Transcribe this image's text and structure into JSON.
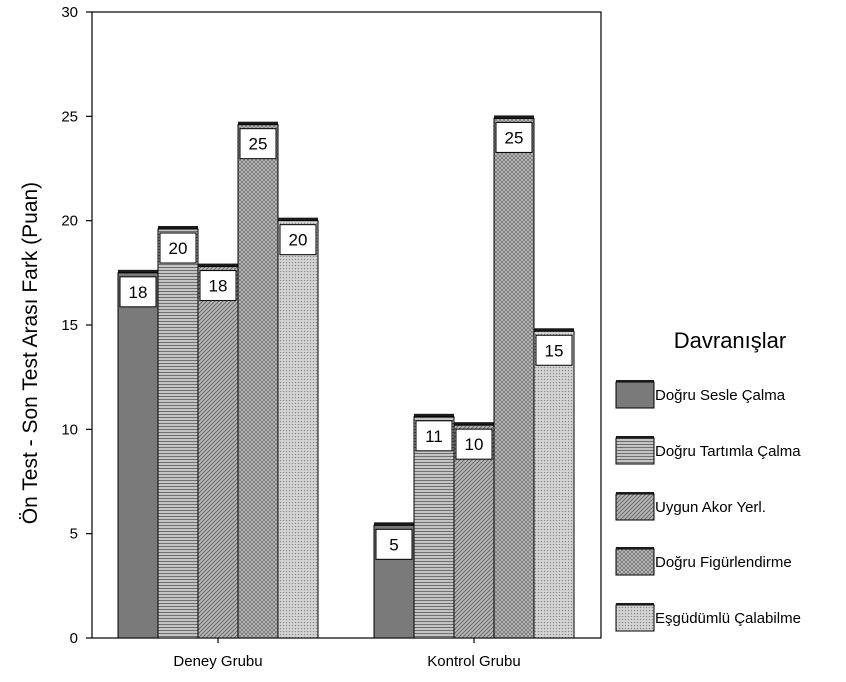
{
  "chart_data": {
    "type": "bar",
    "title": "",
    "xlabel": "",
    "ylabel": "Ön Test - Son Test Arası Fark (Puan)",
    "ylim": [
      0,
      30
    ],
    "yticks": [
      "0",
      "5",
      "10",
      "15",
      "20",
      "25",
      "30"
    ],
    "categories": [
      "Deney Grubu",
      "Kontrol Grubu"
    ],
    "legend_title": "Davranışlar",
    "legend_position": "right",
    "grid": false,
    "series": [
      {
        "name": "Doğru Sesle Çalma",
        "values": [
          17.5,
          5.4
        ],
        "labels": [
          "18",
          "5"
        ],
        "color": "#7a7a7a",
        "pattern": "solid"
      },
      {
        "name": "Doğru Tartımla Çalma",
        "values": [
          19.6,
          10.6
        ],
        "labels": [
          "20",
          "11"
        ],
        "color": "#a8a8a8",
        "pattern": "horizontal"
      },
      {
        "name": "Uygun Akor Yerl.",
        "values": [
          17.8,
          10.2
        ],
        "labels": [
          "18",
          "10"
        ],
        "color": "#9a9a9a",
        "pattern": "diagonal"
      },
      {
        "name": "Doğru Figürlendirme",
        "values": [
          24.6,
          24.9
        ],
        "labels": [
          "25",
          "25"
        ],
        "color": "#a4a4a4",
        "pattern": "crosshatch"
      },
      {
        "name": "Eşgüdümlü Çalabilme",
        "values": [
          20.0,
          14.7
        ],
        "labels": [
          "20",
          "15"
        ],
        "color": "#c2c2c2",
        "pattern": "dots"
      }
    ]
  }
}
